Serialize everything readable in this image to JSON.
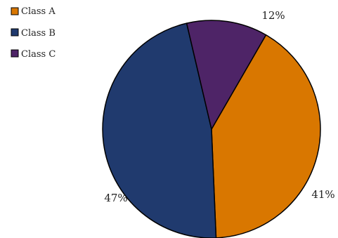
{
  "chart_data": {
    "type": "pie",
    "categories": [
      "Class A",
      "Class B",
      "Class C"
    ],
    "values": [
      41,
      47,
      12
    ],
    "labels": [
      "41%",
      "47%",
      "12%"
    ],
    "colors": [
      "#D97700",
      "#203A6E",
      "#4E2467"
    ],
    "legend_position": "top-left",
    "start_angle_deg": 30,
    "direction": "clockwise"
  }
}
